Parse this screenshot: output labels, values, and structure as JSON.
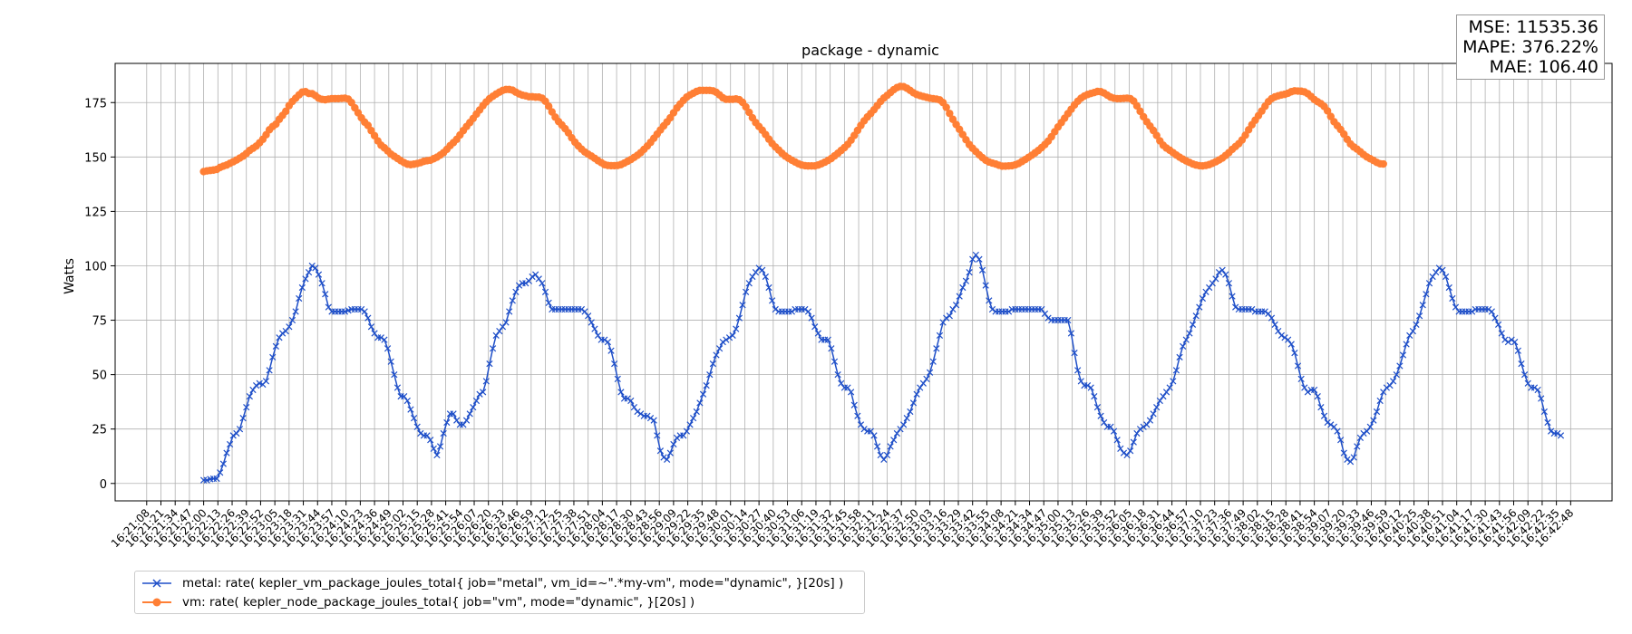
{
  "chart_data": {
    "type": "line",
    "title": "package - dynamic",
    "ylabel": "Watts",
    "xlabel": "",
    "ylim": [
      -8,
      193
    ],
    "yticks": [
      0,
      25,
      50,
      75,
      100,
      125,
      150,
      175
    ],
    "grid": true,
    "legend_position": "bottom-left",
    "x_start": "16:21:08",
    "x_end": "16:42:57",
    "x_tick_step_seconds": 13,
    "series": [
      {
        "name": "metal: rate( kepler_vm_package_joules_total{ job=\"metal\", vm_id=~\".*my-vm\", mode=\"dynamic\", }[20s] )",
        "color": "#1f4fc8",
        "marker": "x",
        "t_start": "16:22:00",
        "t_step_seconds": 3,
        "values": [
          1.5,
          1.5,
          2.0,
          2.2,
          2.2,
          5.0,
          9.0,
          14.0,
          18.0,
          22.0,
          23.0,
          25.0,
          30.0,
          35.0,
          40.0,
          43.0,
          45.0,
          46.0,
          45.5,
          47.0,
          52.0,
          58.0,
          63.0,
          67.0,
          69.0,
          70.0,
          72.0,
          75.0,
          79.0,
          85.0,
          90.0,
          94.0,
          97.0,
          100.0,
          99.0,
          96.0,
          92.0,
          87.0,
          81.0,
          79.0,
          79.0,
          79.0,
          79.0,
          79.0,
          79.5,
          80.0,
          80.0,
          80.0,
          80.0,
          79.0,
          76.0,
          72.0,
          69.0,
          67.0,
          67.0,
          66.0,
          62.0,
          56.0,
          50.0,
          44.0,
          40.0,
          40.0,
          38.0,
          34.0,
          30.0,
          26.0,
          23.0,
          22.0,
          22.0,
          20.0,
          16.0,
          13.0,
          17.0,
          23.0,
          28.0,
          32.0,
          32.0,
          29.0,
          27.0,
          27.0,
          29.0,
          32.0,
          35.0,
          38.0,
          41.0,
          42.0,
          47.0,
          55.0,
          62.0,
          68.0,
          70.0,
          72.0,
          74.0,
          79.0,
          84.0,
          88.0,
          91.0,
          92.0,
          92.0,
          93.0,
          95.0,
          96.0,
          94.0,
          92.0,
          88.0,
          83.0,
          80.0,
          80.0,
          80.0,
          80.0,
          80.0,
          80.0,
          80.0,
          80.0,
          80.0,
          80.0,
          79.0,
          77.0,
          74.0,
          71.0,
          68.0,
          66.0,
          66.0,
          65.0,
          61.0,
          55.0,
          48.0,
          42.0,
          39.0,
          39.0,
          38.0,
          35.0,
          33.0,
          32.0,
          31.0,
          31.0,
          30.0,
          29.0,
          22.0,
          15.0,
          12.0,
          11.0,
          14.0,
          18.0,
          21.0,
          22.0,
          22.0,
          24.0,
          27.0,
          30.0,
          33.0,
          37.0,
          41.0,
          45.0,
          50.0,
          55.0,
          59.0,
          62.0,
          65.0,
          66.0,
          67.0,
          68.0,
          71.0,
          76.0,
          82.0,
          88.0,
          92.0,
          95.0,
          97.0,
          99.0,
          98.0,
          95.0,
          90.0,
          84.0,
          80.0,
          79.0,
          79.0,
          79.0,
          79.0,
          79.0,
          80.0,
          80.0,
          80.0,
          80.0,
          79.0,
          76.0,
          72.0,
          69.0,
          66.0,
          66.0,
          66.0,
          62.0,
          56.0,
          50.0,
          46.0,
          44.0,
          44.0,
          42.0,
          36.0,
          31.0,
          27.0,
          25.0,
          24.0,
          24.0,
          22.0,
          17.0,
          13.0,
          11.0,
          13.0,
          17.0,
          20.0,
          23.0,
          25.0,
          27.0,
          30.0,
          33.0,
          37.0,
          41.0,
          44.0,
          46.0,
          48.0,
          51.0,
          56.0,
          62.0,
          68.0,
          74.0,
          76.0,
          77.0,
          80.0,
          82.0,
          86.0,
          90.0,
          93.0,
          97.0,
          103.0,
          105.0,
          103.0,
          98.0,
          91.0,
          84.0,
          80.0,
          79.0,
          79.0,
          79.0,
          79.0,
          79.0,
          80.0,
          80.0,
          80.0,
          80.0,
          80.0,
          80.0,
          80.0,
          80.0,
          80.0,
          80.0,
          78.0,
          76.0,
          75.0,
          75.0,
          75.0,
          75.0,
          75.0,
          75.0,
          69.0,
          60.0,
          52.0,
          47.0,
          45.0,
          45.0,
          44.0,
          40.0,
          35.0,
          31.0,
          28.0,
          26.0,
          26.0,
          24.0,
          20.0,
          16.0,
          14.0,
          13.0,
          15.0,
          19.0,
          23.0,
          25.0,
          26.0,
          27.0,
          29.0,
          32.0,
          35.0,
          38.0,
          40.0,
          42.0,
          44.0,
          47.0,
          52.0,
          58.0,
          63.0,
          66.0,
          69.0,
          73.0,
          77.0,
          81.0,
          85.0,
          88.0,
          90.0,
          92.0,
          94.0,
          97.0,
          98.0,
          96.0,
          92.0,
          86.0,
          81.0,
          80.0,
          80.0,
          80.0,
          80.0,
          80.0,
          79.0,
          79.0,
          79.0,
          79.0,
          78.0,
          76.0,
          73.0,
          70.0,
          68.0,
          67.0,
          66.0,
          64.0,
          60.0,
          54.0,
          48.0,
          44.0,
          42.0,
          43.0,
          43.0,
          40.0,
          35.0,
          31.0,
          28.0,
          27.0,
          26.0,
          24.0,
          20.0,
          14.0,
          11.0,
          10.0,
          12.0,
          17.0,
          21.0,
          23.0,
          24.0,
          26.0,
          29.0,
          33.0,
          38.0,
          42.0,
          44.0,
          45.0,
          47.0,
          50.0,
          54.0,
          59.0,
          64.0,
          68.0,
          70.0,
          73.0,
          77.0,
          82.0,
          87.0,
          92.0,
          95.0,
          97.0,
          99.0,
          98.0,
          95.0,
          90.0,
          85.0,
          81.0,
          79.0,
          79.0,
          79.0,
          79.0,
          79.0,
          80.0,
          80.0,
          80.0,
          80.0,
          80.0,
          79.0,
          76.0,
          73.0,
          69.0,
          66.0,
          65.0,
          66.0,
          65.0,
          61.0,
          55.0,
          50.0,
          46.0,
          44.0,
          44.0,
          43.0,
          39.0,
          33.0,
          28.0,
          24.0,
          23.0,
          23.0,
          22.0
        ]
      },
      {
        "name": "vm: rate( kepler_node_package_joules_total{ job=\"vm\", mode=\"dynamic\", }[20s] )",
        "color": "#ff7f35",
        "marker": "o",
        "t_start": "16:22:00",
        "t_step_seconds": 3,
        "values": [
          143.3,
          143.6,
          143.8,
          144.0,
          144.3,
          145.2,
          145.8,
          146.3,
          147.1,
          147.8,
          148.6,
          149.5,
          150.4,
          151.6,
          153.0,
          154.0,
          155.0,
          156.5,
          158.1,
          160.2,
          162.5,
          164.0,
          165.1,
          167.3,
          169.1,
          171.0,
          173.6,
          175.5,
          177.0,
          178.5,
          179.8,
          180.0,
          179.2,
          179.1,
          178.2,
          177.0,
          176.5,
          176.3,
          176.6,
          176.8,
          176.8,
          176.8,
          176.9,
          177.0,
          176.6,
          175.0,
          172.6,
          170.3,
          168.0,
          166.0,
          164.5,
          162.1,
          159.8,
          157.4,
          155.4,
          154.2,
          152.8,
          151.3,
          150.3,
          149.3,
          148.3,
          147.4,
          146.7,
          146.5,
          146.7,
          147.0,
          147.4,
          148.0,
          148.3,
          148.5,
          149.2,
          149.9,
          150.9,
          152.0,
          153.5,
          155.2,
          156.6,
          158.1,
          160.1,
          162.1,
          164.0,
          165.8,
          167.7,
          169.7,
          171.6,
          173.6,
          175.3,
          176.8,
          177.9,
          178.9,
          179.8,
          180.6,
          181.0,
          181.0,
          180.7,
          179.8,
          179.0,
          178.4,
          178.1,
          177.7,
          177.7,
          177.5,
          177.5,
          177.0,
          175.6,
          173.3,
          170.7,
          168.3,
          166.3,
          164.7,
          163.0,
          161.1,
          158.8,
          156.8,
          155.1,
          153.6,
          152.3,
          151.3,
          150.4,
          149.4,
          148.3,
          147.4,
          146.5,
          146.1,
          146.0,
          146.0,
          146.1,
          146.5,
          147.2,
          148.0,
          148.8,
          149.8,
          150.8,
          152.0,
          153.5,
          155.0,
          156.7,
          158.6,
          160.5,
          162.4,
          164.3,
          166.1,
          168.0,
          170.3,
          172.5,
          174.3,
          176.0,
          177.5,
          178.5,
          179.3,
          180.1,
          180.6,
          180.6,
          180.6,
          180.6,
          180.4,
          179.7,
          178.5,
          177.2,
          176.5,
          176.5,
          176.5,
          176.7,
          176.3,
          175.1,
          173.0,
          170.5,
          168.0,
          165.8,
          164.0,
          162.3,
          160.3,
          158.2,
          156.2,
          154.6,
          153.2,
          151.7,
          150.4,
          149.4,
          148.5,
          147.7,
          146.9,
          146.3,
          146.0,
          145.9,
          145.9,
          145.9,
          146.3,
          146.9,
          147.6,
          148.4,
          149.3,
          150.5,
          151.7,
          153.0,
          154.3,
          155.8,
          157.7,
          159.9,
          162.2,
          164.5,
          166.6,
          168.4,
          170.0,
          171.7,
          173.6,
          175.5,
          177.1,
          178.3,
          179.6,
          180.9,
          181.9,
          182.4,
          182.3,
          181.6,
          180.6,
          179.5,
          178.7,
          178.2,
          177.8,
          177.4,
          177.0,
          176.8,
          176.6,
          176.2,
          175.0,
          172.8,
          170.0,
          167.3,
          164.9,
          162.7,
          160.3,
          157.9,
          155.7,
          154.0,
          152.5,
          151.0,
          149.7,
          148.5,
          147.7,
          147.2,
          146.8,
          146.2,
          145.8,
          145.8,
          145.9,
          146.0,
          146.4,
          147.0,
          147.9,
          148.8,
          149.8,
          150.8,
          151.9,
          153.0,
          154.3,
          155.7,
          157.3,
          159.3,
          161.6,
          163.8,
          165.8,
          167.8,
          169.9,
          171.9,
          173.9,
          175.6,
          177.0,
          178.0,
          178.7,
          179.2,
          179.6,
          180.1,
          180.0,
          179.4,
          178.4,
          177.5,
          177.0,
          176.8,
          176.8,
          176.9,
          177.0,
          176.8,
          175.7,
          173.5,
          171.0,
          168.5,
          166.2,
          164.2,
          162.2,
          159.9,
          157.4,
          155.4,
          154.1,
          153.1,
          152.0,
          150.9,
          149.9,
          149.0,
          148.2,
          147.5,
          146.8,
          146.3,
          146.0,
          145.9,
          146.1,
          146.5,
          147.1,
          147.8,
          148.6,
          149.5,
          150.7,
          152.0,
          153.5,
          154.8,
          156.1,
          157.8,
          160.0,
          162.5,
          164.8,
          166.9,
          169.0,
          171.1,
          173.3,
          175.4,
          176.8,
          177.6,
          178.1,
          178.5,
          178.8,
          179.3,
          180.0,
          180.4,
          180.3,
          180.2,
          179.9,
          179.1,
          177.8,
          176.4,
          175.4,
          174.5,
          173.2,
          171.2,
          168.6,
          166.2,
          164.4,
          162.6,
          160.5,
          158.1,
          156.0,
          154.6,
          153.6,
          152.4,
          151.1,
          150.0,
          149.2,
          148.4,
          147.5,
          146.9,
          146.8
        ]
      }
    ]
  },
  "stats": {
    "mse": "MSE: 11535.36",
    "mape": "MAPE: 376.22%",
    "mae": "MAE: 106.40"
  }
}
